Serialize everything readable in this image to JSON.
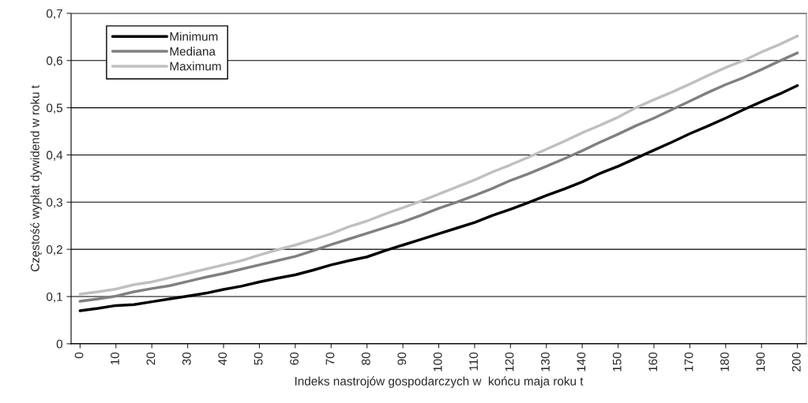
{
  "chart_data": {
    "type": "line",
    "xlabel": "Indeks nastrojów gospodarczych w  końcu maja roku t",
    "ylabel": "Częstość wypłat dywidend w roku t",
    "x": [
      0,
      5,
      10,
      15,
      20,
      25,
      30,
      35,
      40,
      45,
      50,
      55,
      60,
      65,
      70,
      75,
      80,
      85,
      90,
      95,
      100,
      105,
      110,
      115,
      120,
      125,
      130,
      135,
      140,
      145,
      150,
      155,
      160,
      165,
      170,
      175,
      180,
      185,
      190,
      195,
      200
    ],
    "series": [
      {
        "name": "Minimum",
        "color": "#000000",
        "values": [
          0.07,
          0.075,
          0.081,
          0.083,
          0.089,
          0.095,
          0.101,
          0.107,
          0.115,
          0.122,
          0.131,
          0.139,
          0.146,
          0.156,
          0.167,
          0.176,
          0.184,
          0.197,
          0.209,
          0.221,
          0.233,
          0.245,
          0.257,
          0.272,
          0.285,
          0.299,
          0.314,
          0.328,
          0.343,
          0.361,
          0.376,
          0.393,
          0.41,
          0.427,
          0.445,
          0.461,
          0.478,
          0.496,
          0.513,
          0.529,
          0.547
        ]
      },
      {
        "name": "Mediana",
        "color": "#808080",
        "values": [
          0.09,
          0.095,
          0.101,
          0.11,
          0.117,
          0.123,
          0.132,
          0.141,
          0.149,
          0.158,
          0.167,
          0.176,
          0.185,
          0.197,
          0.21,
          0.222,
          0.234,
          0.246,
          0.258,
          0.272,
          0.287,
          0.3,
          0.314,
          0.329,
          0.346,
          0.36,
          0.376,
          0.392,
          0.409,
          0.427,
          0.444,
          0.462,
          0.478,
          0.496,
          0.514,
          0.532,
          0.549,
          0.564,
          0.581,
          0.599,
          0.616
        ]
      },
      {
        "name": "Maximum",
        "color": "#c0c0c0",
        "values": [
          0.105,
          0.11,
          0.116,
          0.125,
          0.131,
          0.14,
          0.149,
          0.158,
          0.167,
          0.176,
          0.188,
          0.199,
          0.209,
          0.221,
          0.233,
          0.248,
          0.26,
          0.275,
          0.288,
          0.302,
          0.317,
          0.332,
          0.347,
          0.364,
          0.379,
          0.395,
          0.412,
          0.429,
          0.447,
          0.463,
          0.48,
          0.5,
          0.517,
          0.533,
          0.55,
          0.568,
          0.585,
          0.6,
          0.618,
          0.634,
          0.652
        ]
      }
    ],
    "xlim": [
      -2.5,
      202.5
    ],
    "xticks": [
      0,
      10,
      20,
      30,
      40,
      50,
      60,
      70,
      80,
      90,
      100,
      110,
      120,
      130,
      140,
      150,
      160,
      170,
      180,
      190,
      200
    ],
    "ylim": [
      0,
      0.7
    ],
    "yticks": [
      0,
      {
        "value": 0.1,
        "label": "0,1"
      },
      {
        "value": 0.2,
        "label": "0,2"
      },
      {
        "value": 0.3,
        "label": "0,3"
      },
      {
        "value": 0.4,
        "label": "0,4"
      },
      {
        "value": 0.5,
        "label": "0,5"
      },
      {
        "value": 0.6,
        "label": "0,6"
      },
      {
        "value": 0.7,
        "label": "0,7"
      }
    ],
    "grid": "y",
    "legend": "top left",
    "marker": "none",
    "line_style": "solid"
  }
}
